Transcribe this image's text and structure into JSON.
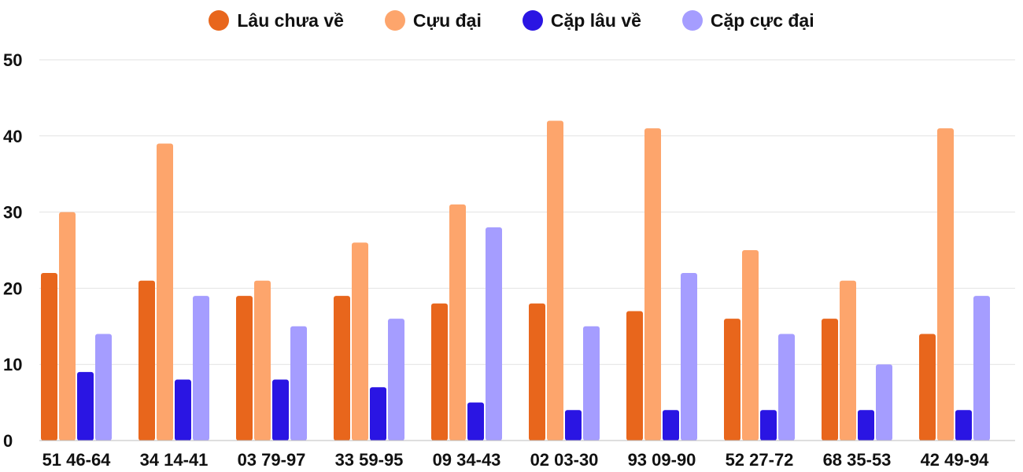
{
  "chart_data": {
    "type": "bar",
    "title": "",
    "xlabel": "",
    "ylabel": "",
    "ylim": [
      0,
      50
    ],
    "yticks": [
      0,
      10,
      20,
      30,
      40,
      50
    ],
    "grid": true,
    "legend_position": "top-center",
    "categories": [
      "51 46-64",
      "34 14-41",
      "03 79-97",
      "33 59-95",
      "09 34-43",
      "02 03-30",
      "93 09-90",
      "52 27-72",
      "68 35-53",
      "42 49-94"
    ],
    "series": [
      {
        "name": "Lâu chưa về",
        "color": "#e8661c",
        "values": [
          22,
          21,
          19,
          19,
          18,
          18,
          17,
          16,
          16,
          14
        ]
      },
      {
        "name": "Cựu đại",
        "color": "#fda56c",
        "values": [
          30,
          39,
          21,
          26,
          31,
          42,
          41,
          25,
          21,
          41
        ]
      },
      {
        "name": "Cặp lâu về",
        "color": "#2a15e3",
        "values": [
          9,
          8,
          8,
          7,
          5,
          4,
          4,
          4,
          4,
          4
        ]
      },
      {
        "name": "Cặp cực đại",
        "color": "#a59dff",
        "values": [
          14,
          19,
          15,
          16,
          28,
          15,
          22,
          14,
          10,
          19
        ]
      }
    ]
  }
}
